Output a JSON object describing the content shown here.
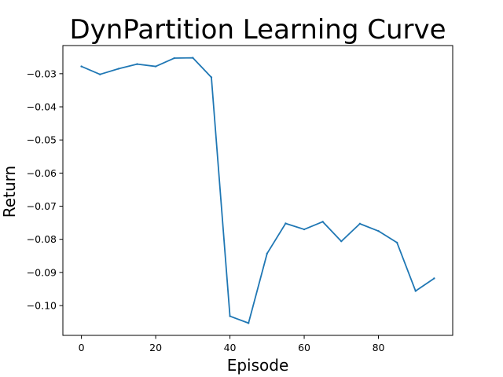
{
  "chart_data": {
    "type": "line",
    "title": "DynPartition Learning Curve",
    "xlabel": "Episode",
    "ylabel": "Return",
    "xlim": [
      -5,
      100
    ],
    "ylim": [
      -0.109,
      -0.0215
    ],
    "grid": false,
    "x_ticks": [
      0,
      20,
      40,
      60,
      80
    ],
    "x_tick_labels": [
      "0",
      "20",
      "40",
      "60",
      "80"
    ],
    "y_ticks": [
      -0.03,
      -0.04,
      -0.05,
      -0.06,
      -0.07,
      -0.08,
      -0.09,
      -0.1
    ],
    "y_tick_labels": [
      "−0.03",
      "−0.04",
      "−0.05",
      "−0.06",
      "−0.07",
      "−0.08",
      "−0.09",
      "−0.10"
    ],
    "series": [
      {
        "color": "#1f77b4",
        "x": [
          0,
          5,
          10,
          15,
          20,
          25,
          30,
          35,
          40,
          45,
          50,
          55,
          60,
          65,
          70,
          75,
          80,
          85,
          90,
          95
        ],
        "y": [
          -0.0278,
          -0.0302,
          -0.0285,
          -0.0271,
          -0.0278,
          -0.0253,
          -0.0252,
          -0.0311,
          -0.1032,
          -0.1053,
          -0.0843,
          -0.0752,
          -0.077,
          -0.0747,
          -0.0806,
          -0.0753,
          -0.0775,
          -0.081,
          -0.0956,
          -0.0918
        ]
      }
    ]
  }
}
